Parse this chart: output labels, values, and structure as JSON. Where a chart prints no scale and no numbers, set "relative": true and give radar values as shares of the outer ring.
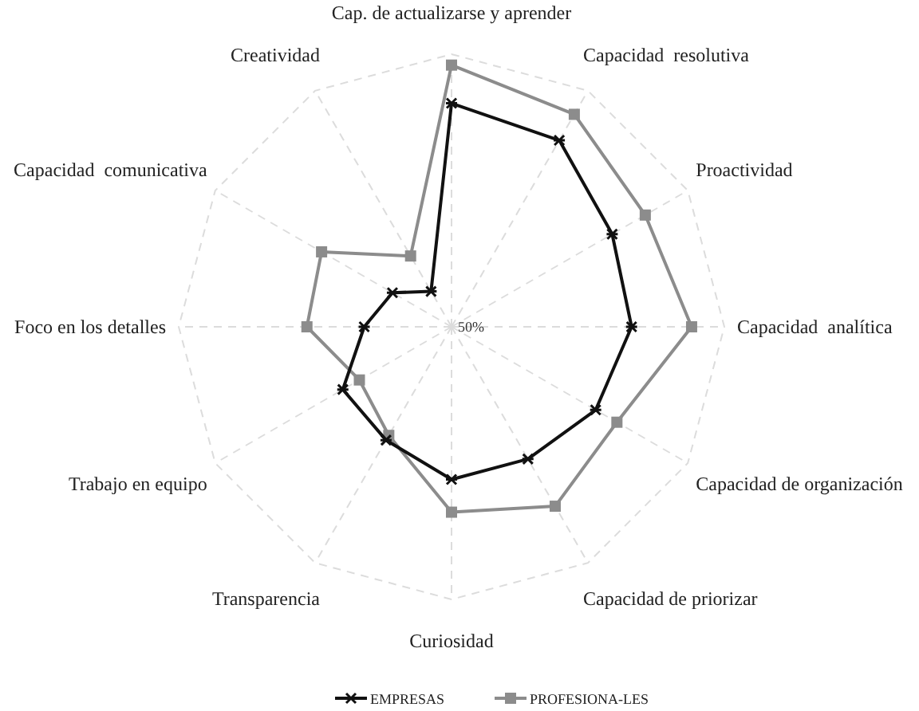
{
  "chart_data": {
    "type": "radar",
    "relative": true,
    "grid": true,
    "legend": "bottom",
    "categories": [
      "Cap. de actualizarse y aprender",
      "Capacidad  resolutiva",
      "Proactividad",
      "Capacidad  analítica",
      "Capacidad de organización",
      "Capacidad de priorizar",
      "Curiosidad",
      "Transparencia",
      "Trabajo en equipo",
      "Foco en los detalles",
      "Capacidad  comunicativa",
      "Creatividad"
    ],
    "series": [
      {
        "name": "EMPRESAS",
        "color": "#111111",
        "marker": "cross",
        "values": [
          0.82,
          0.79,
          0.68,
          0.66,
          0.61,
          0.56,
          0.56,
          0.48,
          0.46,
          0.32,
          0.25,
          0.15
        ]
      },
      {
        "name": "PROFESIONA-LES",
        "color": "#8c8c8c",
        "marker": "square",
        "values": [
          0.96,
          0.9,
          0.82,
          0.88,
          0.7,
          0.76,
          0.68,
          0.46,
          0.39,
          0.53,
          0.55,
          0.3
        ]
      }
    ],
    "annotations": [
      "50%"
    ]
  }
}
